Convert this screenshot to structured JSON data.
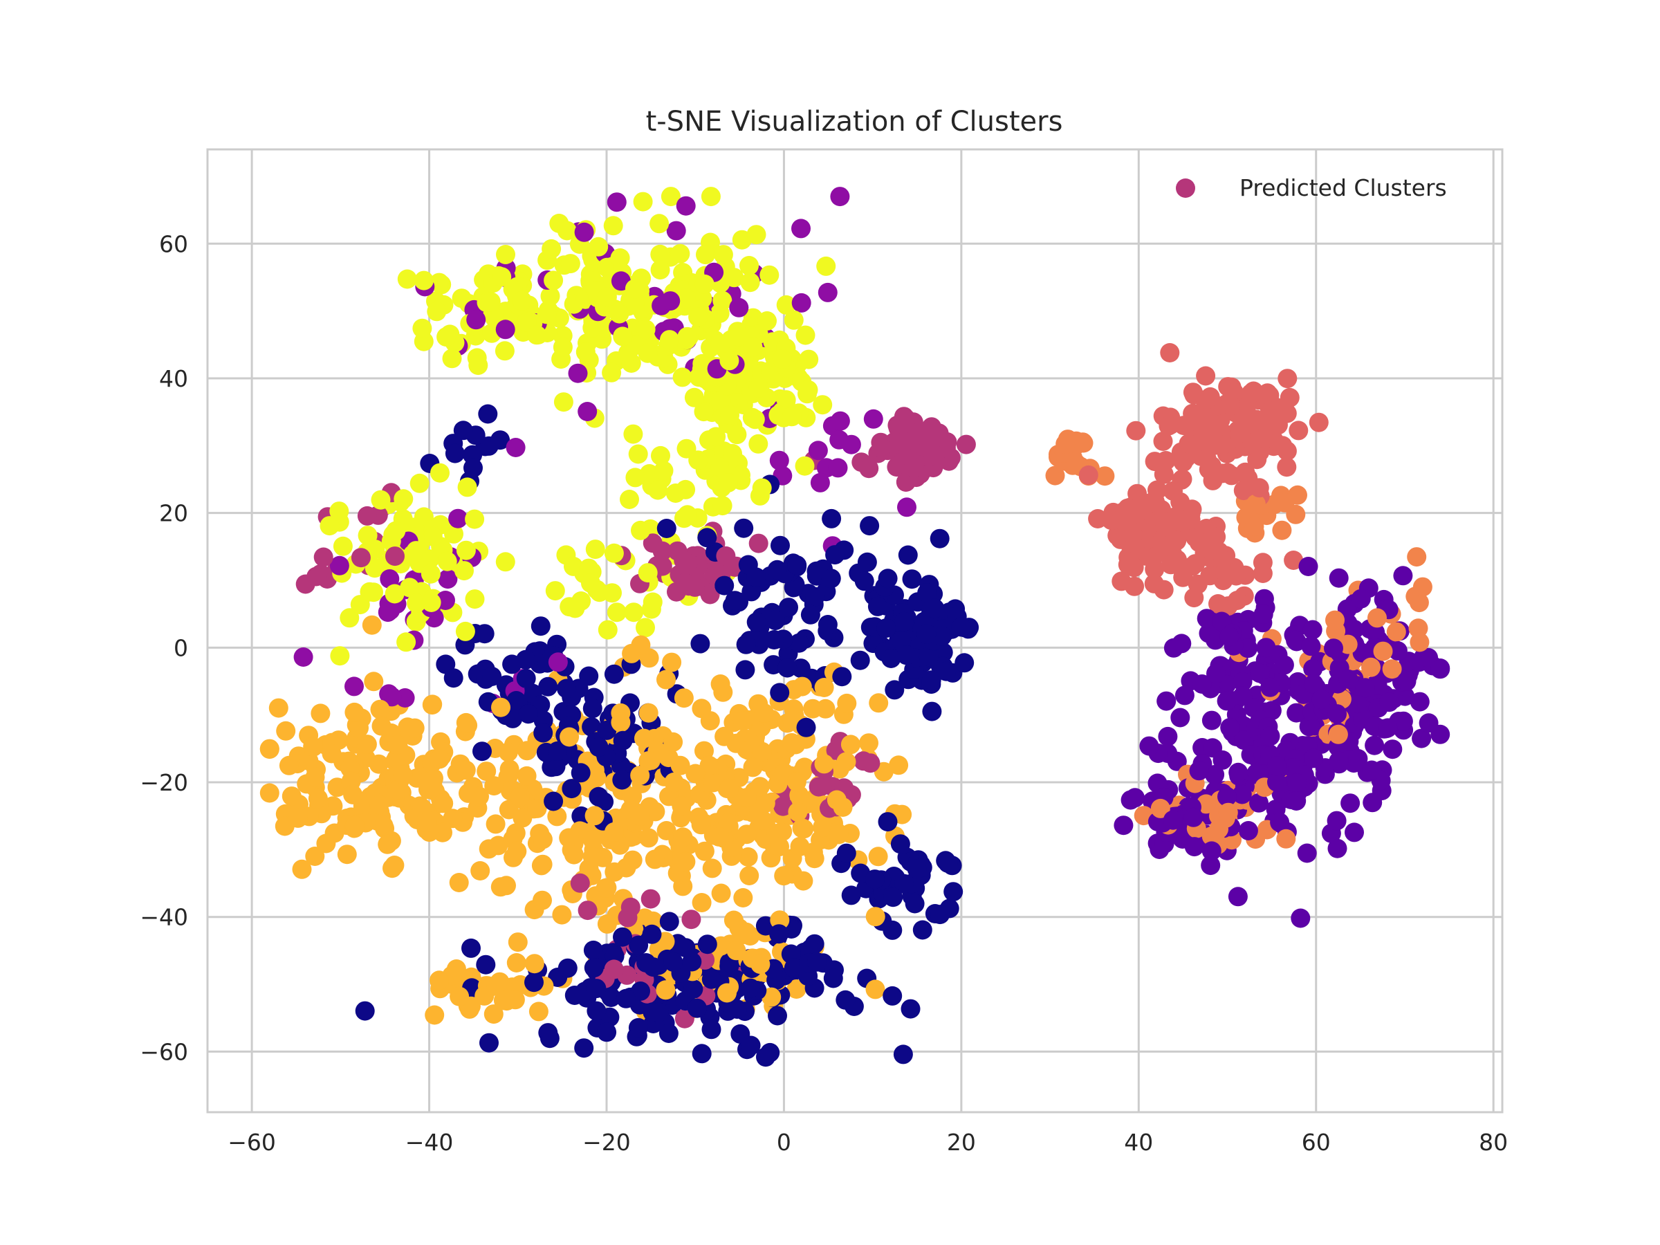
{
  "chart_data": {
    "type": "scatter",
    "title": "t-SNE Visualization of Clusters",
    "xlabel": "",
    "ylabel": "",
    "xlim": [
      -65,
      81
    ],
    "ylim": [
      -69,
      74
    ],
    "x_ticks": [
      -60,
      -40,
      -20,
      0,
      20,
      40,
      60,
      80
    ],
    "y_ticks": [
      -60,
      -40,
      -20,
      0,
      20,
      40,
      60
    ],
    "x_tick_labels": [
      "−60",
      "−40",
      "−20",
      "0",
      "20",
      "40",
      "60",
      "80"
    ],
    "y_tick_labels": [
      "−60",
      "−40",
      "−20",
      "0",
      "20",
      "40",
      "60"
    ],
    "grid": true,
    "legend": {
      "label": "Predicted Clusters",
      "position": "top-right",
      "marker_color": "#b5367a"
    },
    "colormap": "plasma",
    "series": [
      {
        "color": "#f0f921",
        "regions": [
          {
            "center": [
              -17,
              52
            ],
            "spread": [
              9,
              8
            ],
            "count": 150
          },
          {
            "center": [
              -3,
              40
            ],
            "spread": [
              5,
              7
            ],
            "count": 110
          },
          {
            "center": [
              -32,
              50
            ],
            "spread": [
              6,
              6
            ],
            "count": 60
          },
          {
            "center": [
              -42,
              15
            ],
            "spread": [
              6,
              8
            ],
            "count": 70
          },
          {
            "center": [
              -20,
              10
            ],
            "spread": [
              6,
              4
            ],
            "count": 30
          },
          {
            "center": [
              -10,
              25
            ],
            "spread": [
              6,
              6
            ],
            "count": 40
          }
        ]
      },
      {
        "color": "#fdb42f",
        "regions": [
          {
            "center": [
              -45,
              -20
            ],
            "spread": [
              8,
              8
            ],
            "count": 140
          },
          {
            "center": [
              -20,
              -25
            ],
            "spread": [
              14,
              12
            ],
            "count": 230
          },
          {
            "center": [
              0,
              -20
            ],
            "spread": [
              8,
              12
            ],
            "count": 130
          },
          {
            "center": [
              -5,
              -48
            ],
            "spread": [
              7,
              5
            ],
            "count": 50
          },
          {
            "center": [
              -33,
              -50
            ],
            "spread": [
              5,
              3
            ],
            "count": 30
          }
        ]
      },
      {
        "color": "#0d0887",
        "regions": [
          {
            "center": [
              15,
              2
            ],
            "spread": [
              4,
              5
            ],
            "count": 90
          },
          {
            "center": [
              -10,
              -50
            ],
            "spread": [
              12,
              6
            ],
            "count": 160
          },
          {
            "center": [
              -20,
              -15
            ],
            "spread": [
              5,
              6
            ],
            "count": 60
          },
          {
            "center": [
              2,
              5
            ],
            "spread": [
              8,
              10
            ],
            "count": 80
          },
          {
            "center": [
              13,
              -35
            ],
            "spread": [
              5,
              6
            ],
            "count": 40
          },
          {
            "center": [
              -30,
              -5
            ],
            "spread": [
              6,
              6
            ],
            "count": 40
          },
          {
            "center": [
              -35,
              30
            ],
            "spread": [
              3,
              3
            ],
            "count": 12
          }
        ]
      },
      {
        "color": "#5c01a6",
        "regions": [
          {
            "center": [
              65,
              -5
            ],
            "spread": [
              6,
              8
            ],
            "count": 120
          },
          {
            "center": [
              55,
              -15
            ],
            "spread": [
              7,
              10
            ],
            "count": 140
          },
          {
            "center": [
              45,
              -25
            ],
            "spread": [
              4,
              3
            ],
            "count": 50
          },
          {
            "center": [
              52,
              0
            ],
            "spread": [
              5,
              6
            ],
            "count": 40
          }
        ]
      },
      {
        "color": "#8f0da4",
        "regions": [
          {
            "center": [
              -15,
              50
            ],
            "spread": [
              15,
              10
            ],
            "count": 45
          },
          {
            "center": [
              -42,
              5
            ],
            "spread": [
              8,
              12
            ],
            "count": 30
          },
          {
            "center": [
              5,
              30
            ],
            "spread": [
              5,
              8
            ],
            "count": 15
          }
        ]
      },
      {
        "color": "#b5367a",
        "regions": [
          {
            "center": [
              15,
              30
            ],
            "spread": [
              4,
              3
            ],
            "count": 50
          },
          {
            "center": [
              -10,
              12
            ],
            "spread": [
              4,
              3
            ],
            "count": 40
          },
          {
            "center": [
              5,
              -20
            ],
            "spread": [
              4,
              5
            ],
            "count": 20
          },
          {
            "center": [
              -50,
              15
            ],
            "spread": [
              4,
              6
            ],
            "count": 15
          },
          {
            "center": [
              -15,
              -45
            ],
            "spread": [
              8,
              8
            ],
            "count": 20
          }
        ]
      },
      {
        "color": "#e16462",
        "regions": [
          {
            "center": [
              50,
              32
            ],
            "spread": [
              5,
              6
            ],
            "count": 120
          },
          {
            "center": [
              42,
              18
            ],
            "spread": [
              4,
              5
            ],
            "count": 70
          },
          {
            "center": [
              48,
              10
            ],
            "spread": [
              5,
              4
            ],
            "count": 30
          }
        ]
      },
      {
        "color": "#f2844b",
        "regions": [
          {
            "center": [
              33,
              29
            ],
            "spread": [
              3,
              2
            ],
            "count": 20
          },
          {
            "center": [
              48,
              -25
            ],
            "spread": [
              5,
              4
            ],
            "count": 30
          },
          {
            "center": [
              60,
              -5
            ],
            "spread": [
              5,
              6
            ],
            "count": 30
          },
          {
            "center": [
              55,
              20
            ],
            "spread": [
              3,
              3
            ],
            "count": 15
          },
          {
            "center": [
              70,
              5
            ],
            "spread": [
              3,
              5
            ],
            "count": 10
          }
        ]
      }
    ]
  }
}
